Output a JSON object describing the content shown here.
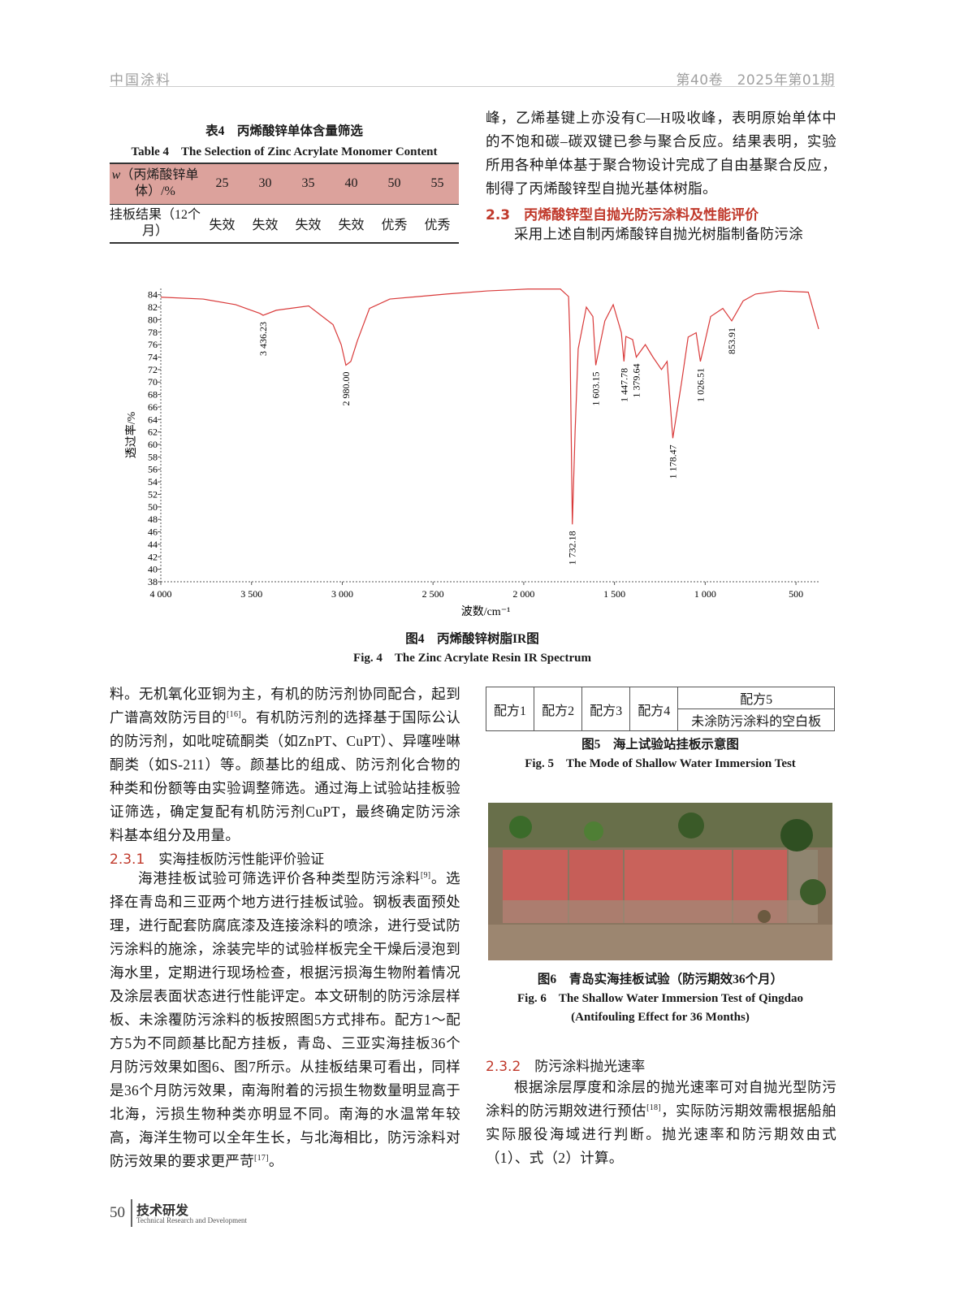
{
  "header": {
    "journal": "中国涂料",
    "issue": "第40卷　2025年第01期"
  },
  "table4": {
    "caption_cn": "表4　丙烯酸锌单体含量筛选",
    "caption_en": "Table 4　The Selection of Zinc Acrylate Monomer Content",
    "header_label": [
      "w",
      "（丙烯酸锌单体）/%"
    ],
    "header_values": [
      25,
      30,
      35,
      40,
      50,
      55
    ],
    "row_label": "挂板结果（12个月）",
    "row_values": [
      "失效",
      "失效",
      "失效",
      "失效",
      "优秀",
      "优秀"
    ]
  },
  "right_top": {
    "paragraph": "峰，乙烯基键上亦没有C—H吸收峰，表明原始单体中的不饱和碳–碳双键已参与聚合反应。结果表明，实验所用各种单体基于聚合物设计完成了自由基聚合反应，制得了丙烯酸锌型自抛光基体树脂。",
    "heading_number": "2.3",
    "heading": "丙烯酸锌型自抛光防污涂料及性能评价",
    "paragraph2": "采用上述自制丙烯酸锌自抛光树脂制备防污涂"
  },
  "chart_data": {
    "type": "line",
    "x_label": "波数/cm⁻¹",
    "y_label": "透过率/%",
    "color": "#d93a3a",
    "xlim": [
      4000,
      375
    ],
    "ylim": [
      38,
      85
    ],
    "xticks": [
      {
        "value": 4000,
        "label": "4 000"
      },
      {
        "value": 3500,
        "label": "3 500"
      },
      {
        "value": 3000,
        "label": "3 000"
      },
      {
        "value": 2500,
        "label": "2 500"
      },
      {
        "value": 2000,
        "label": "2 000"
      },
      {
        "value": 1500,
        "label": "1 500"
      },
      {
        "value": 1000,
        "label": "1 000"
      },
      500
    ],
    "yticks": [
      38,
      40,
      42,
      44,
      46,
      48,
      50,
      52,
      54,
      56,
      58,
      60,
      62,
      64,
      66,
      68,
      70,
      72,
      74,
      76,
      78,
      80,
      82,
      84
    ],
    "x": [
      4000,
      3767,
      3588,
      3454,
      3436.23,
      3364,
      3185,
      3051,
      3006,
      2980,
      2953,
      2917,
      2850,
      2738,
      2425,
      2201,
      1977,
      1798,
      1753,
      1745,
      1732.18,
      1717,
      1700,
      1655,
      1619,
      1603.15,
      1553,
      1507,
      1462,
      1447.78,
      1437,
      1400,
      1379.64,
      1330,
      1288,
      1241,
      1210,
      1178.47,
      1130,
      1094,
      1050,
      1026.51,
      970,
      903,
      853.91,
      791,
      723,
      589,
      432,
      375
    ],
    "values": [
      83.6,
      83.3,
      82.4,
      81,
      80.7,
      81.5,
      82.2,
      79.2,
      76,
      72.7,
      73.3,
      76.6,
      81.8,
      83.3,
      84.1,
      84.6,
      84.9,
      84.9,
      83.7,
      76.6,
      47.2,
      62,
      75.3,
      82,
      80.5,
      72.7,
      79.8,
      82.4,
      77.9,
      73.3,
      77.3,
      76.8,
      74,
      76,
      74,
      72,
      73.3,
      61,
      70,
      77.2,
      77.9,
      73.3,
      80.5,
      81.8,
      79.8,
      83,
      84.1,
      84.6,
      84.4,
      78.5
    ],
    "peaks": [
      {
        "x": 3436.23,
        "y": 80.7,
        "label": "3 436.23"
      },
      {
        "x": 2980,
        "y": 72.7,
        "label": "2 980.00"
      },
      {
        "x": 1732.18,
        "y": 47.2,
        "label": "1 732.18"
      },
      {
        "x": 1603.15,
        "y": 72.7,
        "label": "1 603.15"
      },
      {
        "x": 1447.78,
        "y": 73.3,
        "label": "1 447.78"
      },
      {
        "x": 1379.64,
        "y": 74,
        "label": "1 379.64"
      },
      {
        "x": 1178.47,
        "y": 61,
        "label": "1 178.47"
      },
      {
        "x": 1026.51,
        "y": 73.3,
        "label": "1 026.51"
      },
      {
        "x": 853.91,
        "y": 79.8,
        "label": "853.91"
      }
    ]
  },
  "figure4": {
    "caption_cn": "图4　丙烯酸锌树脂IR图",
    "caption_en": "Fig. 4　The Zinc Acrylate Resin IR Spectrum"
  },
  "left_bottom": {
    "p1": [
      "料。无机氧化亚铜为主，有机的防污剂协同配合，起到广谱高效防污目的",
      "[16]",
      "。有机防污剂的选择基于国际公认的防污剂，如吡啶硫酮类（如ZnPT、CuPT）、异噻唑啉酮类（如S-211）等。颜基比的组成、防污剂化合物的种类和份额等由实验调整筛选。通过海上试验站挂板验证筛选，确定复配有机防污剂CuPT，最终确定防污涂料基本组分及用量。"
    ],
    "heading_number": "2.3.1",
    "heading": "实海挂板防污性能评价验证",
    "p2": [
      "海港挂板试验可筛选评价各种类型防污涂料",
      "[9]",
      "。选择在青岛和三亚两个地方进行挂板试验。钢板表面预处理，进行配套防腐底漆及连接涂料的喷涂，进行受试防污涂料的施涂，涂装完毕的试验样板完全干燥后浸泡到海水里，定期进行现场检查，根据污损海生物附着情况及涂层表面状态进行性能评定。本文研制的防污涂层样板、未涂覆防污涂料的板按照图5方式排布。配方1～配方5为不同颜基比配方挂板，青岛、三亚实海挂板36个月防污效果如图6、图7所示。从挂板结果可看出，同样是36个月防污效果，南海附着的污损生物数量明显高于北海，污损生物种类亦明显不同。南海的水温常年较高，海洋生物可以全年生长，与北海相比，防污涂料对防污效果的要求更严苛",
      "[17]",
      "。"
    ]
  },
  "figure5": {
    "cells": [
      "配方1",
      "配方2",
      "配方3",
      "配方4"
    ],
    "cell5_top": "配方5",
    "cell5_bottom": "未涂防污涂料的空白板",
    "caption_cn": "图5　海上试验站挂板示意图",
    "caption_en": "Fig. 5　The Mode of Shallow Water Immersion Test"
  },
  "figure6": {
    "caption_cn": "图6　青岛实海挂板试验（防污期效36个月）",
    "caption_en_1": "Fig. 6　The Shallow Water Immersion Test of Qingdao",
    "caption_en_2": "(Antifouling Effect for 36 Months)"
  },
  "section_2_3_2": {
    "heading_number": "2.3.2",
    "heading": "防污涂料抛光速率",
    "paragraph": [
      "根据涂层厚度和涂层的抛光速率可对自抛光型防污涂料的防污期效进行预估",
      "[18]",
      "，实际防污期效需根据船舶实际服役海域进行判断。抛光速率和防污期效由式（1）、式（2）计算。"
    ]
  },
  "footer": {
    "page": 50,
    "section_cn": "技术研发",
    "section_en": "Technical Research and Development"
  }
}
